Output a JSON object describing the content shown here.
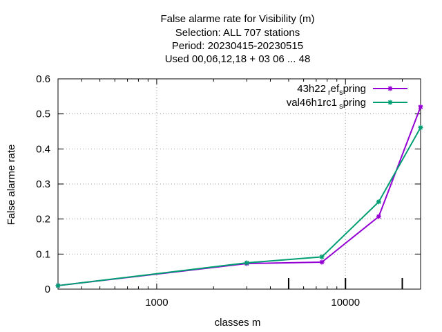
{
  "chart_data": {
    "type": "line",
    "title_lines": [
      "False alarme rate  for Visibility (m)",
      "Selection: ALL    707 stations",
      "Period: 20230415-20230515",
      "Used  00,06,12,18  + 03 06 ... 48"
    ],
    "xlabel": "classes m",
    "ylabel": "False alarme rate",
    "x_scale": "log",
    "xlim": [
      300,
      25000
    ],
    "ylim": [
      0,
      0.6
    ],
    "x_ticks": [
      1000,
      10000
    ],
    "x_tick_labels": [
      "1000",
      "10000"
    ],
    "y_ticks": [
      0,
      0.1,
      0.2,
      0.3,
      0.4,
      0.5,
      0.6
    ],
    "y_tick_labels": [
      "0",
      "0.1",
      "0.2",
      "0.3",
      "0.4",
      "0.5",
      "0.6"
    ],
    "grid": true,
    "legend_position": "top-right",
    "vertical_markers": [
      5000,
      10000,
      20000
    ],
    "x": [
      300,
      3000,
      7500,
      15000,
      25000
    ],
    "series": [
      {
        "name_main": "43h22",
        "name_sub1": "r",
        "name_mid": "ef",
        "name_sub2": "s",
        "name_end": "pring",
        "color": "#9400d3",
        "values": [
          0.01,
          0.073,
          0.077,
          0.207,
          0.52
        ]
      },
      {
        "name_main": "val46h1rc1",
        "name_sub1": "",
        "name_mid": "",
        "name_sub2": "s",
        "name_end": "pring",
        "color": "#009e73",
        "values": [
          0.01,
          0.075,
          0.092,
          0.249,
          0.461
        ]
      }
    ]
  }
}
